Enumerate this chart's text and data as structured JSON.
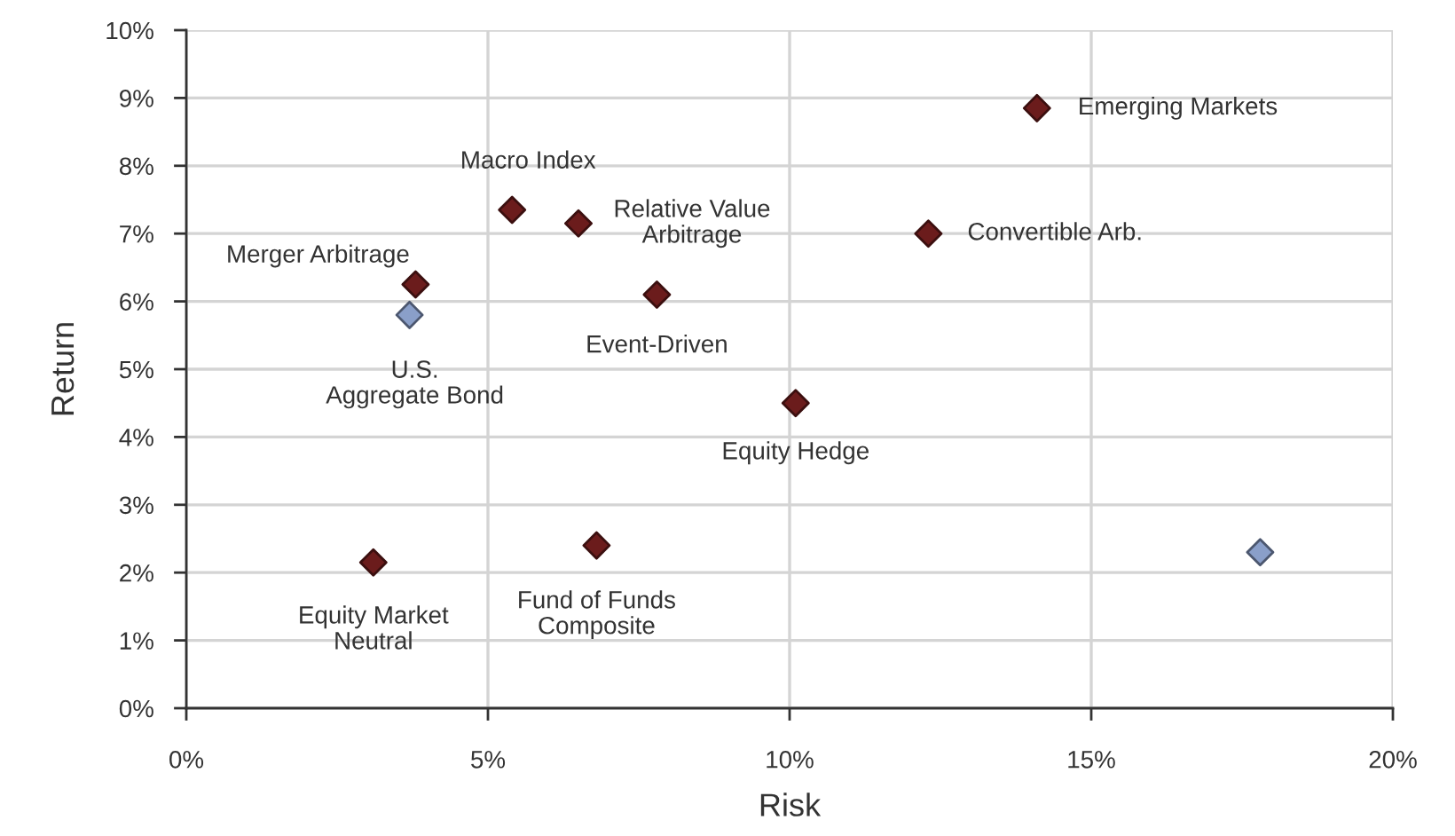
{
  "chart_data": {
    "type": "scatter",
    "xlabel": "Risk",
    "ylabel": "Return",
    "xlim": [
      0,
      20
    ],
    "ylim": [
      0,
      10
    ],
    "xticks": [
      {
        "value": 0,
        "label": "0%"
      },
      {
        "value": 5,
        "label": "5%"
      },
      {
        "value": 10,
        "label": "10%"
      },
      {
        "value": 15,
        "label": "15%"
      },
      {
        "value": 20,
        "label": "20%"
      }
    ],
    "yticks": [
      {
        "value": 0,
        "label": "0%"
      },
      {
        "value": 1,
        "label": "1%"
      },
      {
        "value": 2,
        "label": "2%"
      },
      {
        "value": 3,
        "label": "3%"
      },
      {
        "value": 4,
        "label": "4%"
      },
      {
        "value": 5,
        "label": "5%"
      },
      {
        "value": 6,
        "label": "6%"
      },
      {
        "value": 7,
        "label": "7%"
      },
      {
        "value": 8,
        "label": "8%"
      },
      {
        "value": 9,
        "label": "9%"
      },
      {
        "value": 10,
        "label": "10%"
      }
    ],
    "grid": true,
    "marker": "diamond",
    "series": [
      {
        "color": "#6b1c1c",
        "x": [
          5.4,
          6.5,
          3.8,
          7.8,
          10.1,
          14.1,
          12.3,
          3.1,
          6.8
        ],
        "values": [
          7.35,
          7.15,
          6.25,
          6.1,
          4.5,
          8.85,
          7.0,
          2.15,
          2.4
        ]
      },
      {
        "color": "#8a9fc9",
        "x": [
          3.7,
          17.8
        ],
        "values": [
          5.8,
          2.3
        ]
      }
    ],
    "annotations": [
      {
        "text": "Macro Index",
        "x": 5.4,
        "y": 7.35
      },
      {
        "text": "Relative Value\nArbitrage",
        "x": 6.5,
        "y": 7.15
      },
      {
        "text": "Merger Arbitrage",
        "x": 3.8,
        "y": 6.25
      },
      {
        "text": "Event-Driven",
        "x": 7.8,
        "y": 6.1
      },
      {
        "text": "Equity Hedge",
        "x": 10.1,
        "y": 4.5
      },
      {
        "text": "Emerging Markets",
        "x": 14.1,
        "y": 8.85
      },
      {
        "text": "Convertible Arb.",
        "x": 12.3,
        "y": 7.0
      },
      {
        "text": "Equity Market\nNeutral",
        "x": 3.1,
        "y": 2.15
      },
      {
        "text": "Fund of Funds\nComposite",
        "x": 6.8,
        "y": 2.4
      },
      {
        "text": "U.S.\nAggregate Bond",
        "x": 3.7,
        "y": 5.8
      }
    ]
  }
}
